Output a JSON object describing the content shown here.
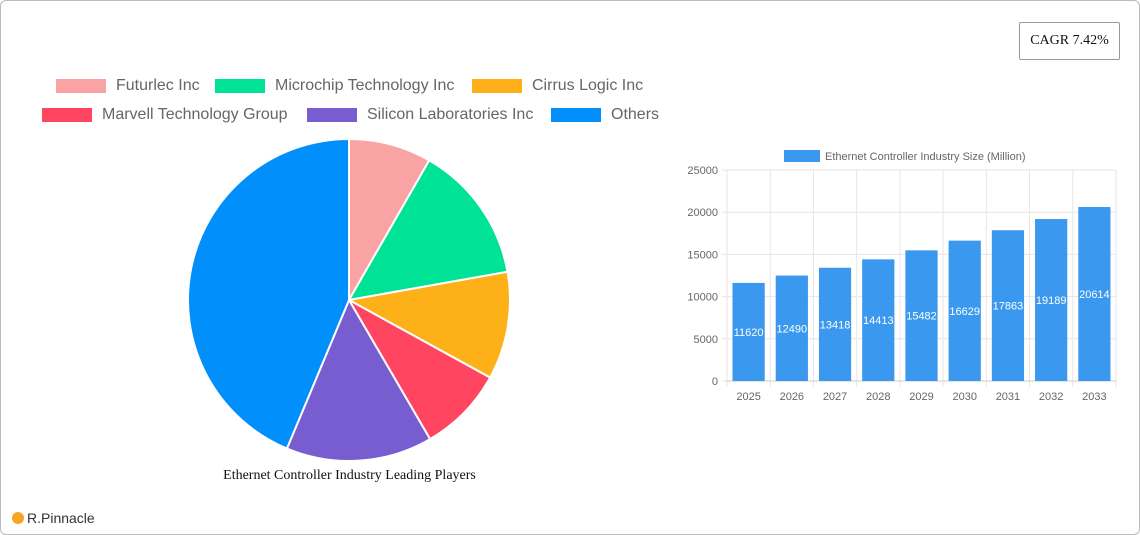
{
  "cagr": "CAGR 7.42%",
  "logo": "R.Pinnacle",
  "chart_data": [
    {
      "type": "pie",
      "title": "Ethernet Controller Industry Leading Players",
      "legend_position": "top",
      "labels": [
        "Futurlec Inc",
        "Microchip Technology Inc",
        "Cirrus Logic Inc",
        "Marvell Technology Group",
        "Silicon Laboratories Inc",
        "Others"
      ],
      "values": [
        8.3,
        13.9,
        10.8,
        8.6,
        14.7,
        43.7
      ],
      "colors": [
        "#f9a3a4",
        "#00e396",
        "#feb019",
        "#ff4560",
        "#775dd0",
        "#008ffb"
      ]
    },
    {
      "type": "bar",
      "series": [
        {
          "name": "Ethernet Controller Industry Size (Million)",
          "values": [
            11620,
            12490,
            13418,
            14413,
            15482,
            16629,
            17863,
            19189,
            20614
          ]
        }
      ],
      "categories": [
        "2025",
        "2026",
        "2027",
        "2028",
        "2029",
        "2030",
        "2031",
        "2032",
        "2033"
      ],
      "ylim": [
        0,
        25000
      ],
      "yticks": [
        "0",
        "5000",
        "10000",
        "15000",
        "20000",
        "25000"
      ],
      "grid": true,
      "legend_position": "top",
      "color": "#3a99ee"
    }
  ]
}
